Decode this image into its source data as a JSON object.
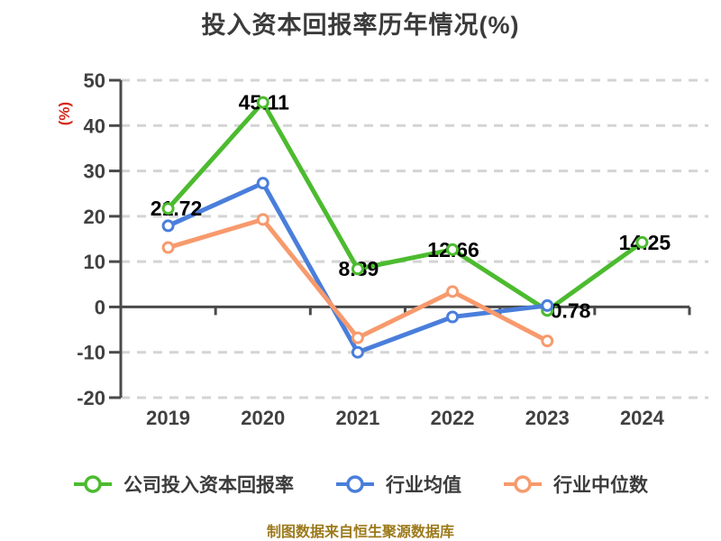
{
  "footer": {
    "text": "制图数据来自恒生聚源数据库",
    "color": "#9c7a1b"
  },
  "colors": {
    "company_series": "#4cbb2f",
    "industry_mean_series": "#4a7edb",
    "industry_median_series": "#f79a6d",
    "axis": "#4a4a4a",
    "gridline": "#d4d4d4",
    "tick_label": "#404040",
    "data_label": "#000000",
    "title_text": "#3b3b3b",
    "y_unit_label": "#d5281b",
    "footer_text": "#9c7a1b"
  },
  "chart_data": {
    "type": "line",
    "title": "投入资本回报率历年情况(%)",
    "ylabel": "(%)",
    "xlabel": "",
    "categories": [
      "2019",
      "2020",
      "2021",
      "2022",
      "2023",
      "2024"
    ],
    "ylim": [
      -20,
      50
    ],
    "yticks": [
      50,
      40,
      30,
      20,
      10,
      0,
      -10,
      -20
    ],
    "grid": "horizontal-dashed",
    "legend_position": "bottom",
    "series": [
      {
        "name": "公司投入资本回报率",
        "color": "#4cbb2f",
        "values": [
          21.72,
          45.11,
          8.39,
          12.66,
          -0.78,
          14.25
        ],
        "point_labels": [
          "21.72",
          "45.11",
          "8.39",
          "12.66",
          "-0.78",
          "14.25"
        ]
      },
      {
        "name": "行业均值",
        "color": "#4a7edb",
        "values": [
          17.9,
          27.3,
          -10.0,
          -2.2,
          0.3,
          null
        ],
        "point_labels": null
      },
      {
        "name": "行业中位数",
        "color": "#f79a6d",
        "values": [
          13.1,
          19.3,
          -6.8,
          3.4,
          -7.5,
          null
        ],
        "point_labels": null
      }
    ]
  }
}
